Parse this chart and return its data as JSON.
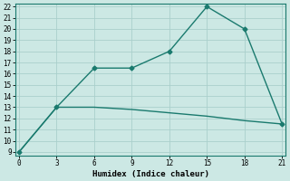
{
  "line1_x": [
    0,
    3,
    6,
    9,
    12,
    15,
    18,
    21
  ],
  "line1_y": [
    9,
    13,
    16.5,
    16.5,
    18,
    22,
    20,
    11.5
  ],
  "line2_x": [
    0,
    3,
    6,
    9,
    12,
    15,
    18,
    21
  ],
  "line2_y": [
    9,
    13,
    13,
    12.8,
    12.5,
    12.2,
    11.8,
    11.5
  ],
  "line_color": "#1a7a6e",
  "bg_color": "#cce8e4",
  "grid_color": "#aacfcc",
  "xlabel": "Humidex (Indice chaleur)",
  "xlim": [
    0,
    21
  ],
  "ylim": [
    9,
    22
  ],
  "xticks": [
    0,
    3,
    6,
    9,
    12,
    15,
    18,
    21
  ],
  "yticks": [
    9,
    10,
    11,
    12,
    13,
    14,
    15,
    16,
    17,
    18,
    19,
    20,
    21,
    22
  ],
  "marker": "D",
  "marker_size": 2.5,
  "line_width": 1.0,
  "font_family": "monospace",
  "tick_fontsize": 5.5,
  "xlabel_fontsize": 6.5
}
